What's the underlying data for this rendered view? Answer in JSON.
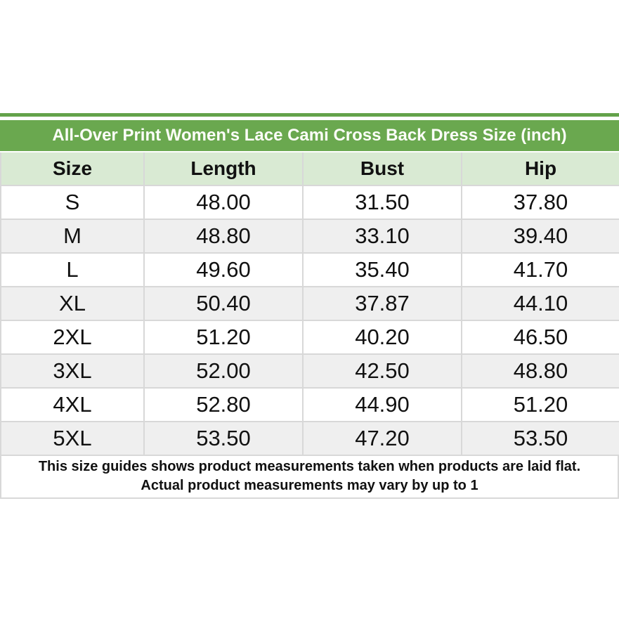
{
  "chart_data": {
    "type": "table",
    "title": "All-Over Print Women's Lace Cami Cross Back Dress Size (inch)",
    "columns": [
      "Size",
      "Length",
      "Bust",
      "Hip"
    ],
    "rows": [
      [
        "S",
        "48.00",
        "31.50",
        "37.80"
      ],
      [
        "M",
        "48.80",
        "33.10",
        "39.40"
      ],
      [
        "L",
        "49.60",
        "35.40",
        "41.70"
      ],
      [
        "XL",
        "50.40",
        "37.87",
        "44.10"
      ],
      [
        "2XL",
        "51.20",
        "40.20",
        "46.50"
      ],
      [
        "3XL",
        "52.00",
        "42.50",
        "48.80"
      ],
      [
        "4XL",
        "52.80",
        "44.90",
        "51.20"
      ],
      [
        "5XL",
        "53.50",
        "47.20",
        "53.50"
      ]
    ],
    "footnote_line1": "This size guides shows product measurements taken when products are laid flat.",
    "footnote_line2": "Actual product measurements may vary by up to 1",
    "layout": "title bar on top, 4-column centered table, footnote row at bottom"
  },
  "colors": {
    "title_bar_green": "#6aa84f",
    "top_strip_green": "#63a24a",
    "header_light_green": "#d9ead3",
    "row_alt_gray": "#efefef",
    "row_white": "#ffffff",
    "grid_line_gray": "#d8d8d8",
    "title_text": "#fcfdf8",
    "body_text": "#111111"
  }
}
